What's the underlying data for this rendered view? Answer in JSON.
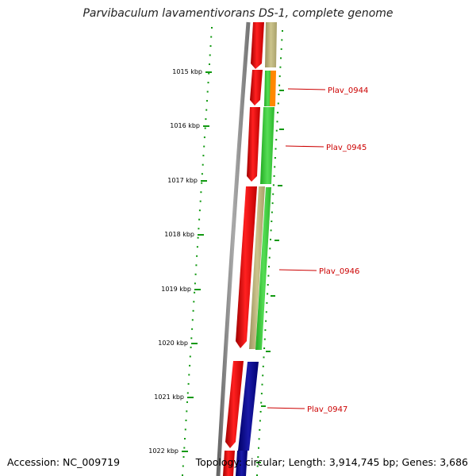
{
  "title": "Parvibaculum lavamentivorans DS-1, complete genome",
  "footer": {
    "accession": "Accession: NC_009719",
    "topology": "Topology: circular; Length: 3,914,745 bp; Genes: 3,686"
  },
  "scale_labels": [
    "1015 kbp",
    "1016 kbp",
    "1017 kbp",
    "1018 kbp",
    "1019 kbp",
    "1020 kbp",
    "1021 kbp",
    "1022 kbp"
  ],
  "gene_labels": [
    "Plav_0944",
    "Plav_0945",
    "Plav_0946",
    "Plav_0947"
  ],
  "colors": {
    "forward_cds": "#ee0000",
    "rna_tan": "#bdb47a",
    "cog_green": "#33cc33",
    "cog_orange": "#ff8800",
    "cog_navy": "#0a0a8c",
    "backbone": "#808080",
    "ticks": "#119911",
    "label_red": "#cc0000"
  }
}
